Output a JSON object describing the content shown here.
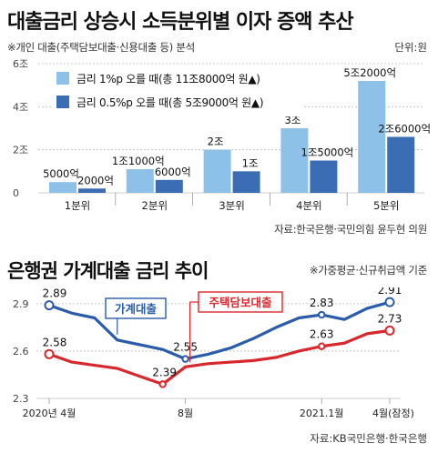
{
  "chart_data": [
    {
      "type": "bar",
      "title": "대출금리 상승시 소득분위별 이자 증액 추산",
      "subtitle": "※개인 대출(주택담보대출·신용대출 등) 분석",
      "unit": "단위:원",
      "source": "자료:한국은행·국민의힘 윤두현 의원",
      "categories": [
        "1분위",
        "2분위",
        "3분위",
        "4분위",
        "5분위"
      ],
      "y_ticks": [
        "0",
        "2조",
        "4조",
        "6조"
      ],
      "ylim": [
        0,
        6
      ],
      "y_unit_value": "조원",
      "legend_position": "top-left",
      "series": [
        {
          "name": "금리 1%p 오를 때(총 11조8000억 원▲)",
          "color": "#8ec1e8",
          "values": [
            0.5,
            1.1,
            2.0,
            3.0,
            5.2
          ],
          "labels": [
            "5000억",
            "1조1000억",
            "2조",
            "3조",
            "5조2000억"
          ]
        },
        {
          "name": "금리 0.5%p 오를 때(총 5조9000억 원▲)",
          "color": "#3b6db5",
          "values": [
            0.2,
            0.6,
            1.0,
            1.5,
            2.6
          ],
          "labels": [
            "2000억",
            "6000억",
            "1조",
            "1조5000억",
            "2조6000억"
          ]
        }
      ]
    },
    {
      "type": "line",
      "title": "은행권 가계대출 금리 추이",
      "subtitle": "※가중평균·신규취급액 기준",
      "source": "자료:KB국민은행·한국은행",
      "x_labels": [
        "2020년 4월",
        "8월",
        "2021.1월",
        "4월(잠정)"
      ],
      "y_ticks": [
        "2.3",
        "2.6",
        "2.9"
      ],
      "ylim": [
        2.3,
        2.98
      ],
      "series": [
        {
          "name": "가계대출",
          "color": "#2a5caa",
          "values": [
            2.89,
            2.84,
            2.81,
            2.67,
            2.64,
            2.61,
            2.55,
            2.58,
            2.62,
            2.68,
            2.75,
            2.81,
            2.83,
            2.8,
            2.87,
            2.91
          ],
          "labels": {
            "0": "2.89",
            "6": "2.55",
            "12": "2.83",
            "15": "2.91"
          }
        },
        {
          "name": "주택담보대출",
          "color": "#d9272e",
          "values": [
            2.58,
            2.53,
            2.51,
            2.49,
            2.44,
            2.39,
            2.5,
            2.52,
            2.53,
            2.54,
            2.56,
            2.6,
            2.63,
            2.65,
            2.71,
            2.73
          ],
          "labels": {
            "0": "2.58",
            "5": "2.39",
            "12": "2.63",
            "15": "2.73"
          }
        }
      ]
    }
  ]
}
